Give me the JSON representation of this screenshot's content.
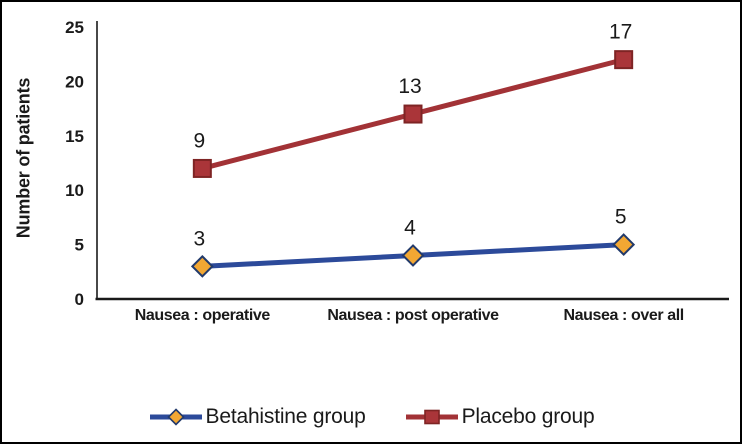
{
  "figure": {
    "background_color": "#ffffff",
    "border_color": "#000000"
  },
  "chart_data": {
    "type": "line",
    "stacked": true,
    "title": "",
    "xlabel": "",
    "ylabel": "Number of patients",
    "ylim": [
      0,
      25
    ],
    "yticks": [
      0,
      5,
      10,
      15,
      20,
      25
    ],
    "grid": false,
    "data_labels": true,
    "legend_position": "bottom",
    "axis_color": "#1a1a1a",
    "text_color": "#1a1a1a",
    "categories": [
      "Nausea : operative",
      "Nausea : post operative",
      "Nausea : over all"
    ],
    "series": [
      {
        "name": "Betahistine group",
        "values": [
          3,
          4,
          5
        ],
        "plotted_y": [
          3,
          4,
          5
        ],
        "line_color": "#2c4a9a",
        "marker": "diamond",
        "marker_fill": "#f2a733",
        "marker_stroke": "#223a6b"
      },
      {
        "name": "Placebo group",
        "values": [
          9,
          13,
          17
        ],
        "plotted_y": [
          12,
          17,
          22
        ],
        "line_color": "#a23236",
        "marker": "square",
        "marker_fill": "#aa3539",
        "marker_stroke": "#7e2424"
      }
    ]
  }
}
